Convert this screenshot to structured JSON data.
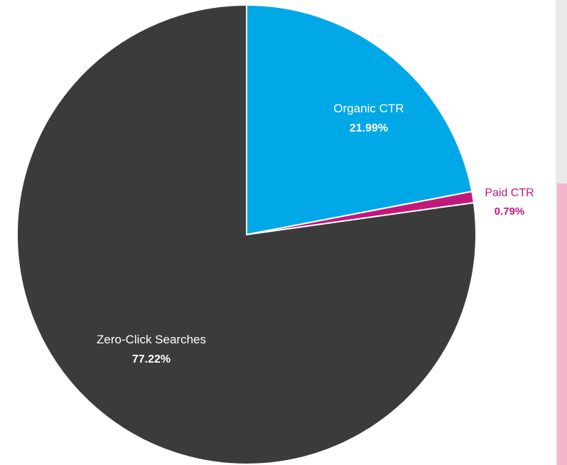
{
  "chart_data": {
    "type": "pie",
    "title": "",
    "slices": [
      {
        "label": "Organic CTR",
        "value": 21.99,
        "value_label": "21.99%",
        "color": "#00a8e8",
        "label_color": "#ffffff"
      },
      {
        "label": "Paid CTR",
        "value": 0.79,
        "value_label": "0.79%",
        "color": "#c2187a",
        "label_color": "#c2187a"
      },
      {
        "label": "Zero-Click Searches",
        "value": 77.22,
        "value_label": "77.22%",
        "color": "#3b3b3b",
        "label_color": "#ffffff"
      }
    ],
    "start_angle": "12 o'clock",
    "direction": "clockwise",
    "separator_color": "#ffffff",
    "legend": "none"
  }
}
